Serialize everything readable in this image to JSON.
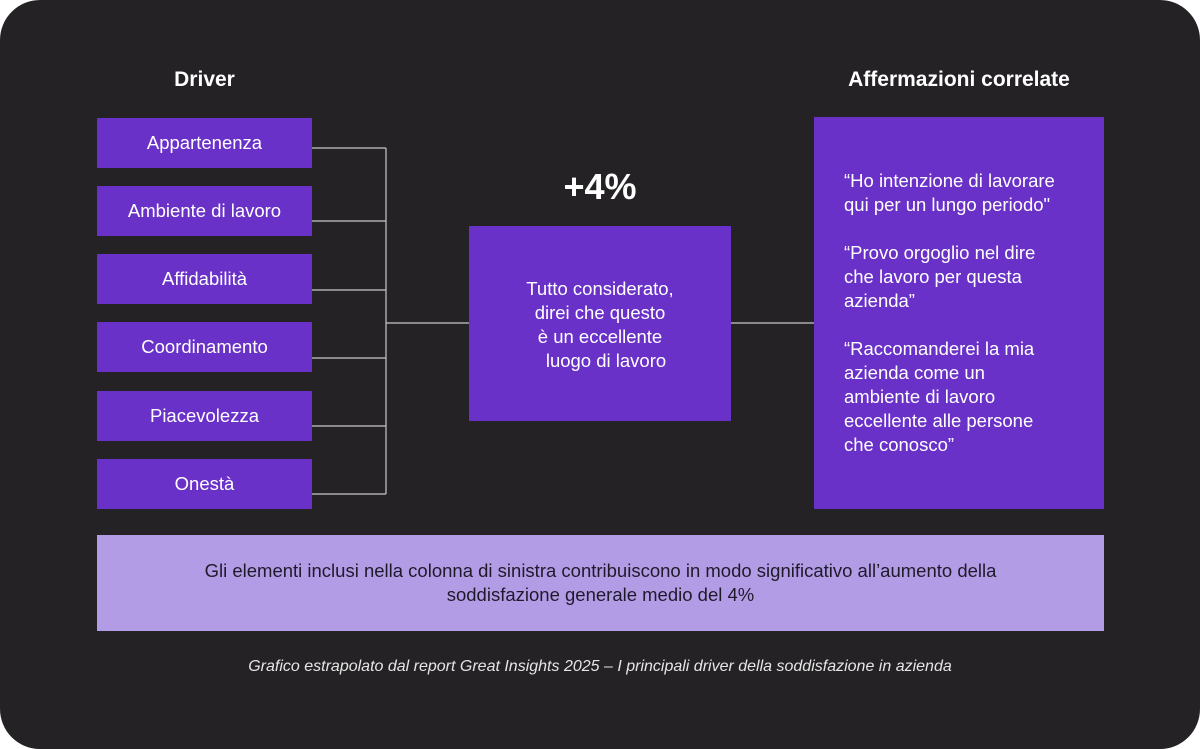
{
  "headings": {
    "drivers": "Driver",
    "statements": "Affermazioni correlate"
  },
  "drivers": [
    "Appartenenza",
    "Ambiente di lavoro",
    "Affidabilità",
    "Coordinamento",
    "Piacevolezza",
    "Onestà"
  ],
  "center": {
    "value": "+4%",
    "lines": [
      "Tutto considerato,",
      "direi che questo",
      "è un eccellente",
      "luogo di lavoro"
    ]
  },
  "statements": [
    "“Ho intenzione di lavorare\nqui per un lungo periodo\"",
    "“Provo orgoglio nel dire\nche lavoro per questa\nazienda”",
    "“Raccomanderei la mia\nazienda come un\nambiente di lavoro\neccellente alle persone\nche conosco”"
  ],
  "note": "Gli elementi inclusi nella colonna di sinistra contribuiscono in modo significativo all’aumento della\nsoddisfazione generale medio del 4%",
  "caption": "Grafico estrapolato dal report Great Insights 2025 – I principali driver della soddisfazione in azienda",
  "colors": {
    "background": "#242224",
    "box": "#6a31c9",
    "note": "#b39ce6",
    "connector": "#c8c8c8"
  }
}
